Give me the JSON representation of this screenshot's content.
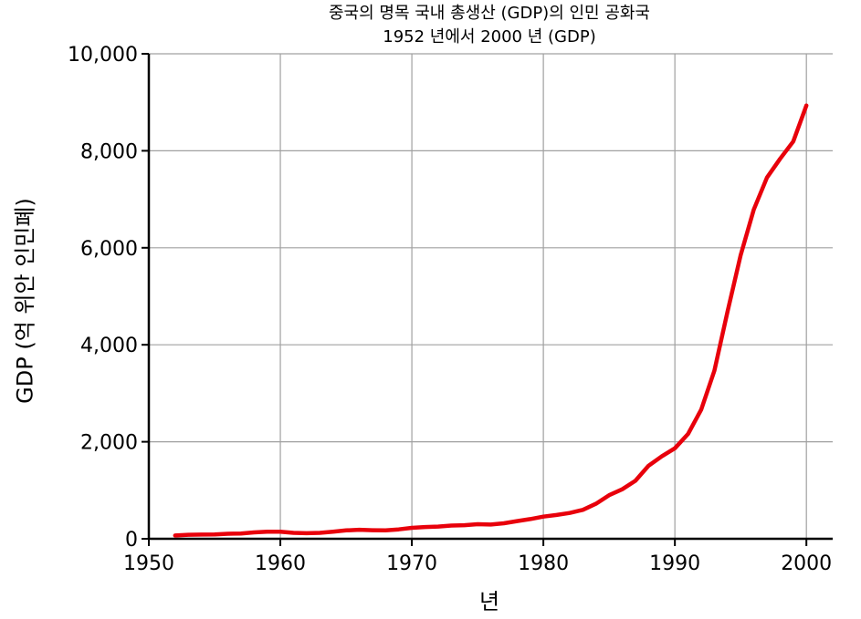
{
  "chart_data": {
    "type": "line",
    "title": "중국의 명목 국내 총생산 (GDP)의 인민 공화국",
    "subtitle": "1952 년에서 2000 년 (GDP)",
    "xlabel": "년",
    "ylabel": "GDP (억 위안 인민폐)",
    "xlim": [
      1950,
      2002
    ],
    "ylim": [
      0,
      10000
    ],
    "xticks": [
      1950,
      1960,
      1970,
      1980,
      1990,
      2000
    ],
    "yticks": [
      0,
      2000,
      4000,
      6000,
      8000,
      10000
    ],
    "xtick_labels": [
      "1950",
      "1960",
      "1970",
      "1980",
      "1990",
      "2000"
    ],
    "ytick_labels": [
      "0",
      "2,000",
      "4,000",
      "6,000",
      "8,000",
      "10,000"
    ],
    "grid": true,
    "series": [
      {
        "color": "#e8000b",
        "x": [
          1952,
          1953,
          1954,
          1955,
          1956,
          1957,
          1958,
          1959,
          1960,
          1961,
          1962,
          1963,
          1964,
          1965,
          1966,
          1967,
          1968,
          1969,
          1970,
          1971,
          1972,
          1973,
          1974,
          1975,
          1976,
          1977,
          1978,
          1979,
          1980,
          1981,
          1982,
          1983,
          1984,
          1985,
          1986,
          1987,
          1988,
          1989,
          1990,
          1991,
          1992,
          1993,
          1994,
          1995,
          1996,
          1997,
          1998,
          1999,
          2000
        ],
        "y": [
          68,
          82,
          86,
          91,
          103,
          107,
          131,
          144,
          146,
          122,
          115,
          123,
          145,
          172,
          187,
          177,
          172,
          194,
          225,
          243,
          252,
          272,
          280,
          300,
          294,
          320,
          365,
          406,
          456,
          490,
          532,
          596,
          721,
          898,
          1020,
          1195,
          1505,
          1700,
          1867,
          2162,
          2664,
          3464,
          4682,
          5847,
          6789,
          7447,
          7835,
          8191,
          8934
        ]
      }
    ]
  }
}
